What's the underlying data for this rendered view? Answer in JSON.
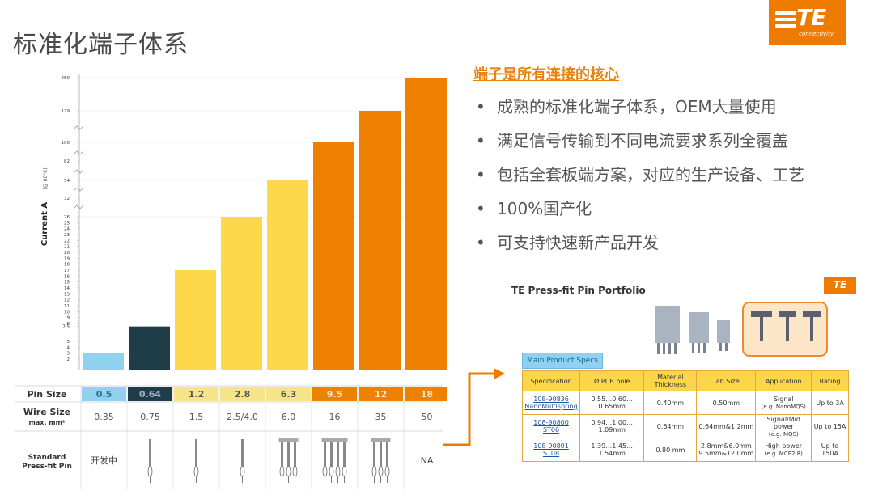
{
  "header": {
    "title": "标准化端子体系",
    "logo_text": "TE",
    "logo_sub": "connectivity"
  },
  "chart_data": {
    "type": "bar",
    "ylabel": "Current A",
    "ylabel_note": "(@ 80°C)",
    "y_ticks": [
      "250",
      "179",
      "100",
      "82",
      "54",
      "32",
      "26",
      "25",
      "24",
      "23",
      "22",
      "21",
      "20",
      "19",
      "18",
      "17",
      "16",
      "15",
      "14",
      "13",
      "12",
      "11",
      "10",
      "9",
      "8",
      "7.5",
      "5",
      "4",
      "3",
      "2"
    ],
    "categories": [
      "0.5",
      "0.64",
      "1.2",
      "2.8",
      "6.3",
      "9.5",
      "12",
      "18"
    ],
    "values": [
      3,
      7.5,
      17,
      26,
      54,
      100,
      179,
      250
    ],
    "colors": [
      "#8fd1ee",
      "#1e3d49",
      "#fdd84b",
      "#fdd84b",
      "#fdd84b",
      "#ee8200",
      "#ee8200",
      "#ee8200"
    ]
  },
  "spec_rows": {
    "pin_size_label": "Pin Size",
    "pin_sizes": [
      "0.5",
      "0.64",
      "1.2",
      "2.8",
      "6.3",
      "9.5",
      "12",
      "18"
    ],
    "pin_colors": [
      "#8fd1ee",
      "#1e3d49",
      "#f6e48a",
      "#f6e48a",
      "#f6e48a",
      "#ee8200",
      "#ee8200",
      "#ee8200"
    ],
    "pin_text_colors": [
      "#2b6f8f",
      "#9bb4bd",
      "#555555",
      "#555555",
      "#555555",
      "#ffe7c2",
      "#ffe7c2",
      "#ffe7c2"
    ],
    "wire_label": "Wire Size",
    "wire_sub": "max. mm²",
    "wire_sizes": [
      "0.35",
      "0.75",
      "1.5",
      "2.5/4.0",
      "6.0",
      "16",
      "35",
      "50"
    ],
    "pin_type_label_1": "Standard",
    "pin_type_label_2": "Press-fit Pin",
    "first_cell_text": "开发中",
    "last_cell_text": "NA",
    "pin_icon_counts": [
      0,
      1,
      1,
      1,
      3,
      4,
      3,
      0
    ]
  },
  "right": {
    "heading": "端子是所有连接的核心",
    "bullets": [
      "成熟的标准化端子体系，OEM大量使用",
      "满足信号传输到不同电流要求系列全覆盖",
      "包括全套板端方案，对应的生产设备、工艺",
      "100%国产化",
      "可支持快速新产品开发"
    ]
  },
  "portfolio": {
    "title": "TE Press-fit Pin Portfolio",
    "logo_text": "TE",
    "tag": "Main Product Specs",
    "headers": [
      "Specification",
      "Ø PCB hole",
      "Material Thickness",
      "Tab Size",
      "Application",
      "Rating"
    ],
    "rows": [
      {
        "spec1": "108-90836",
        "spec2": "NanoMultispring",
        "hole": "0.55…0.60…0.65mm",
        "thick": "0.40mm",
        "tab1": "0.50mm",
        "tab2": "",
        "app1": "Signal",
        "app2": "(e.g. NanoMQS)",
        "rating": "Up to 3A"
      },
      {
        "spec1": "108-90800  ST06",
        "spec2": "",
        "hole": "0.94…1.00…1.09mm",
        "thick": "0.64mm",
        "tab1": "0.64mm&1.2mm",
        "tab2": "",
        "app1": "Signal/Mid power",
        "app2": "(e.g. MQS)",
        "rating": "Up to 15A"
      },
      {
        "spec1": "108-90801  ST08",
        "spec2": "",
        "hole": "1.39…1.45…1.54mm",
        "thick": "0.80 mm",
        "tab1": "2.8mm&6.0mm",
        "tab2": "9.5mm&12.0mm",
        "app1": "High power",
        "app2": "(e.g. MCP2.8)",
        "rating": "Up to 150A"
      }
    ]
  }
}
